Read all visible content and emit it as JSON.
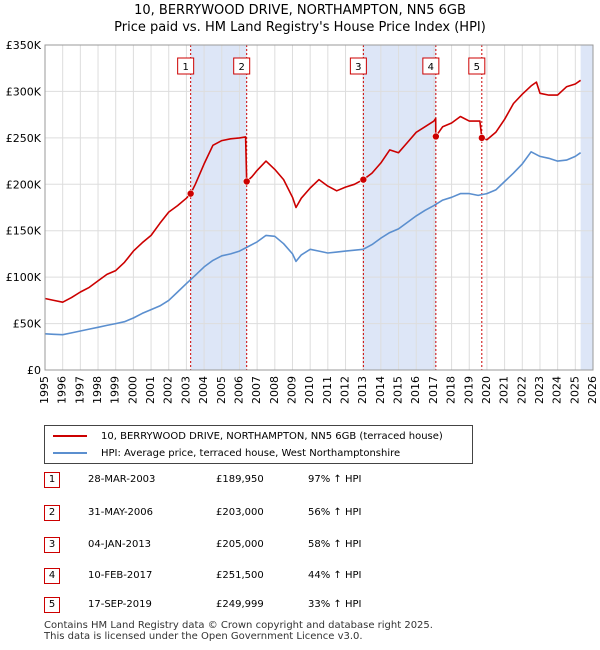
{
  "title_line1": "10, BERRYWOOD DRIVE, NORTHAMPTON, NN5 6GB",
  "title_line2": "Price paid vs. HM Land Registry's House Price Index (HPI)",
  "colors": {
    "property": "#cc0000",
    "hpi": "#5b8fcf",
    "shade": "#dde6f7",
    "grid": "#dddddd",
    "marker_border": "#cc0000"
  },
  "legend": {
    "property_label": "10, BERRYWOOD DRIVE, NORTHAMPTON, NN5 6GB (terraced house)",
    "hpi_label": "HPI: Average price, terraced house, West Northamptonshire"
  },
  "sales": [
    {
      "num": "1",
      "date": "28-MAR-2003",
      "price": "£189,950",
      "hpi": "97% ↑ HPI"
    },
    {
      "num": "2",
      "date": "31-MAY-2006",
      "price": "£203,000",
      "hpi": "56% ↑ HPI"
    },
    {
      "num": "3",
      "date": "04-JAN-2013",
      "price": "£205,000",
      "hpi": "58% ↑ HPI"
    },
    {
      "num": "4",
      "date": "10-FEB-2017",
      "price": "£251,500",
      "hpi": "44% ↑ HPI"
    },
    {
      "num": "5",
      "date": "17-SEP-2019",
      "price": "£249,999",
      "hpi": "33% ↑ HPI"
    }
  ],
  "footer_line1": "Contains HM Land Registry data © Crown copyright and database right 2025.",
  "footer_line2": "This data is licensed under the Open Government Licence v3.0.",
  "chart_data": {
    "type": "line",
    "title": "10, BERRYWOOD DRIVE, NORTHAMPTON, NN5 6GB — Price paid vs. HM Land Registry's House Price Index (HPI)",
    "xlim": [
      1995,
      2026
    ],
    "ylim": [
      0,
      350000
    ],
    "x_ticks": [
      1995,
      1996,
      1997,
      1998,
      1999,
      2000,
      2001,
      2002,
      2003,
      2004,
      2005,
      2006,
      2007,
      2008,
      2009,
      2010,
      2011,
      2012,
      2013,
      2014,
      2015,
      2016,
      2017,
      2018,
      2019,
      2020,
      2021,
      2022,
      2023,
      2024,
      2025,
      2026
    ],
    "y_ticks": [
      0,
      50000,
      100000,
      150000,
      200000,
      250000,
      300000,
      350000
    ],
    "y_tick_labels": [
      "£0",
      "£50K",
      "£100K",
      "£150K",
      "£200K",
      "£250K",
      "£300K",
      "£350K"
    ],
    "grid": true,
    "shaded_ranges": [
      [
        2003.24,
        2006.41
      ],
      [
        2013.01,
        2017.11
      ],
      [
        2019.71,
        2019.71
      ],
      [
        2025.3,
        2026
      ]
    ],
    "sale_points": [
      {
        "label": "1",
        "x": 2003.24,
        "y": 189950
      },
      {
        "label": "2",
        "x": 2006.41,
        "y": 203000
      },
      {
        "label": "3",
        "x": 2013.01,
        "y": 205000
      },
      {
        "label": "4",
        "x": 2017.11,
        "y": 251500
      },
      {
        "label": "5",
        "x": 2019.71,
        "y": 249999
      }
    ],
    "series": [
      {
        "name": "10, BERRYWOOD DRIVE, NORTHAMPTON, NN5 6GB (terraced house)",
        "x": [
          1995,
          1995.5,
          1996,
          1996.5,
          1997,
          1997.5,
          1998,
          1998.5,
          1999,
          1999.5,
          2000,
          2000.5,
          2001,
          2001.5,
          2002,
          2002.5,
          2003,
          2003.24,
          2003.5,
          2004,
          2004.5,
          2005,
          2005.5,
          2006,
          2006.35,
          2006.41,
          2006.7,
          2007,
          2007.5,
          2008,
          2008.5,
          2009,
          2009.2,
          2009.5,
          2010,
          2010.5,
          2011,
          2011.5,
          2012,
          2012.5,
          2013,
          2013.01,
          2013.5,
          2014,
          2014.5,
          2015,
          2015.5,
          2016,
          2016.5,
          2017,
          2017.1,
          2017.11,
          2017.5,
          2018,
          2018.5,
          2019,
          2019.6,
          2019.71,
          2020,
          2020.5,
          2021,
          2021.5,
          2022,
          2022.5,
          2022.8,
          2023,
          2023.5,
          2024,
          2024.5,
          2025,
          2025.3
        ],
        "y": [
          77000,
          75000,
          73000,
          78000,
          84000,
          89000,
          96000,
          103000,
          107000,
          116000,
          128000,
          137000,
          145000,
          158000,
          170000,
          177000,
          185000,
          189950,
          200000,
          222000,
          242000,
          247000,
          249000,
          250000,
          251000,
          203000,
          208000,
          215000,
          225000,
          216000,
          205000,
          186000,
          175000,
          185000,
          196000,
          205000,
          198000,
          193000,
          197000,
          200000,
          205000,
          205000,
          212000,
          223000,
          237000,
          234000,
          245000,
          256000,
          262000,
          268000,
          271000,
          251500,
          262000,
          266000,
          273000,
          268000,
          268000,
          249999,
          248000,
          256000,
          270000,
          287000,
          297000,
          306000,
          310000,
          298000,
          296000,
          296000,
          305000,
          308000,
          312000
        ]
      },
      {
        "name": "HPI: Average price, terraced house, West Northamptonshire",
        "x": [
          1995,
          1995.5,
          1996,
          1996.5,
          1997,
          1997.5,
          1998,
          1998.5,
          1999,
          1999.5,
          2000,
          2000.5,
          2001,
          2001.5,
          2002,
          2002.5,
          2003,
          2003.5,
          2004,
          2004.5,
          2005,
          2005.5,
          2006,
          2006.5,
          2007,
          2007.5,
          2008,
          2008.5,
          2009,
          2009.2,
          2009.5,
          2010,
          2010.5,
          2011,
          2011.5,
          2012,
          2012.5,
          2013,
          2013.5,
          2014,
          2014.5,
          2015,
          2015.5,
          2016,
          2016.5,
          2017,
          2017.5,
          2018,
          2018.5,
          2019,
          2019.5,
          2020,
          2020.5,
          2021,
          2021.5,
          2022,
          2022.5,
          2023,
          2023.5,
          2024,
          2024.5,
          2025,
          2025.3
        ],
        "y": [
          39000,
          38500,
          38000,
          40000,
          42000,
          44000,
          46000,
          48000,
          50000,
          52000,
          56000,
          61000,
          65000,
          69000,
          75000,
          84000,
          93000,
          102000,
          111000,
          118000,
          123000,
          125000,
          128000,
          133000,
          138000,
          145000,
          144000,
          136000,
          125000,
          117000,
          124000,
          130000,
          128000,
          126000,
          127000,
          128000,
          129000,
          130000,
          135000,
          142000,
          148000,
          152000,
          159000,
          166000,
          172000,
          177000,
          183000,
          186000,
          190000,
          190000,
          188000,
          190000,
          194000,
          203000,
          212000,
          222000,
          235000,
          230000,
          228000,
          225000,
          226000,
          230000,
          234000
        ]
      }
    ]
  }
}
